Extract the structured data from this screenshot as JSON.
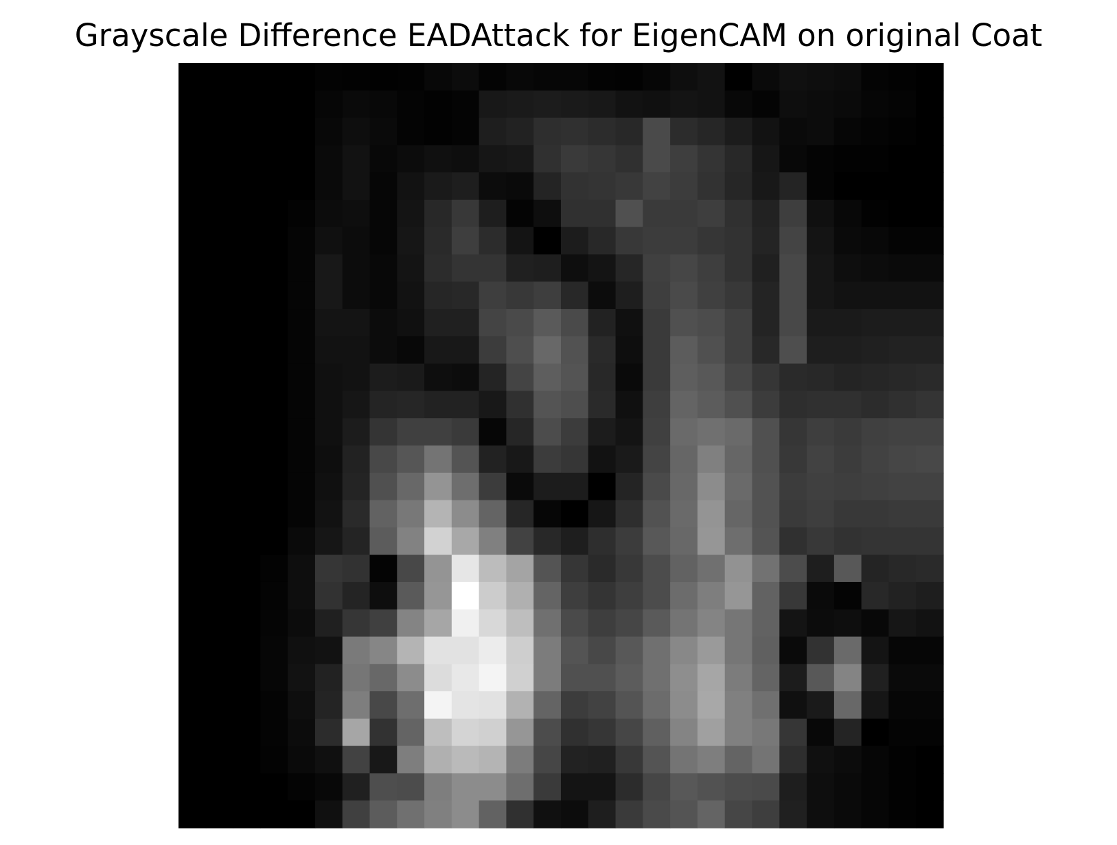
{
  "chart_data": {
    "type": "heatmap",
    "title": "Grayscale Difference EADAttack for EigenCAM on original Coat",
    "xlabel": "",
    "ylabel": "",
    "colormap": "gray",
    "axis_visible": false,
    "grid": false,
    "legend": "none",
    "vmin": 0,
    "vmax": 255,
    "rows": 28,
    "cols": 28,
    "values": [
      [
        0,
        0,
        0,
        0,
        0,
        3,
        2,
        1,
        2,
        8,
        12,
        4,
        8,
        6,
        6,
        3,
        2,
        6,
        14,
        18,
        0,
        10,
        16,
        14,
        12,
        4,
        2,
        0
      ],
      [
        0,
        0,
        0,
        0,
        0,
        6,
        10,
        8,
        4,
        2,
        4,
        24,
        26,
        28,
        26,
        24,
        18,
        16,
        20,
        18,
        8,
        4,
        14,
        12,
        10,
        6,
        4,
        0
      ],
      [
        0,
        0,
        0,
        0,
        0,
        8,
        14,
        10,
        4,
        2,
        4,
        30,
        34,
        46,
        48,
        44,
        40,
        74,
        44,
        38,
        28,
        18,
        10,
        12,
        6,
        4,
        2,
        0
      ],
      [
        0,
        0,
        0,
        0,
        0,
        10,
        18,
        8,
        12,
        16,
        14,
        22,
        24,
        48,
        58,
        54,
        48,
        74,
        62,
        52,
        40,
        22,
        8,
        4,
        2,
        2,
        0,
        0
      ],
      [
        0,
        0,
        0,
        0,
        0,
        10,
        18,
        6,
        18,
        26,
        30,
        12,
        10,
        36,
        50,
        52,
        56,
        66,
        60,
        50,
        38,
        24,
        36,
        4,
        0,
        0,
        0,
        0
      ],
      [
        0,
        0,
        0,
        0,
        3,
        12,
        14,
        6,
        20,
        40,
        56,
        30,
        4,
        14,
        48,
        48,
        80,
        58,
        58,
        62,
        48,
        34,
        62,
        16,
        8,
        2,
        0,
        0
      ],
      [
        0,
        0,
        0,
        0,
        5,
        16,
        12,
        6,
        22,
        42,
        62,
        44,
        20,
        0,
        28,
        40,
        56,
        60,
        60,
        54,
        50,
        36,
        68,
        20,
        10,
        8,
        4,
        4
      ],
      [
        0,
        0,
        0,
        0,
        5,
        24,
        12,
        8,
        20,
        44,
        52,
        52,
        32,
        30,
        14,
        20,
        38,
        64,
        70,
        62,
        50,
        32,
        72,
        22,
        14,
        12,
        10,
        10
      ],
      [
        0,
        0,
        0,
        0,
        5,
        24,
        12,
        8,
        18,
        38,
        40,
        62,
        56,
        62,
        40,
        12,
        30,
        62,
        74,
        64,
        56,
        36,
        72,
        22,
        18,
        18,
        18,
        18
      ],
      [
        0,
        0,
        0,
        0,
        5,
        20,
        20,
        12,
        16,
        32,
        32,
        68,
        74,
        90,
        74,
        34,
        16,
        58,
        80,
        76,
        64,
        36,
        72,
        26,
        26,
        28,
        28,
        28
      ],
      [
        0,
        0,
        0,
        0,
        5,
        18,
        18,
        12,
        8,
        24,
        24,
        60,
        78,
        104,
        82,
        42,
        14,
        58,
        92,
        80,
        64,
        40,
        78,
        30,
        30,
        32,
        34,
        34
      ],
      [
        0,
        0,
        0,
        0,
        5,
        16,
        18,
        28,
        26,
        14,
        12,
        36,
        68,
        94,
        84,
        40,
        10,
        58,
        94,
        88,
        70,
        54,
        42,
        40,
        36,
        38,
        40,
        42
      ],
      [
        0,
        0,
        0,
        0,
        5,
        16,
        22,
        36,
        38,
        34,
        34,
        24,
        48,
        84,
        78,
        42,
        16,
        62,
        100,
        92,
        80,
        60,
        46,
        48,
        48,
        44,
        48,
        52
      ],
      [
        0,
        0,
        0,
        0,
        5,
        16,
        28,
        52,
        64,
        64,
        58,
        6,
        38,
        76,
        60,
        28,
        20,
        64,
        106,
        112,
        106,
        80,
        54,
        62,
        58,
        64,
        66,
        66
      ],
      [
        0,
        0,
        0,
        0,
        5,
        14,
        34,
        72,
        86,
        116,
        84,
        34,
        24,
        60,
        54,
        18,
        26,
        68,
        102,
        128,
        102,
        80,
        56,
        66,
        60,
        66,
        70,
        72
      ],
      [
        0,
        0,
        0,
        0,
        5,
        16,
        36,
        80,
        104,
        148,
        110,
        60,
        10,
        28,
        28,
        0,
        36,
        74,
        104,
        140,
        106,
        82,
        60,
        64,
        62,
        64,
        66,
        66
      ],
      [
        0,
        0,
        0,
        0,
        5,
        18,
        42,
        98,
        120,
        180,
        140,
        100,
        38,
        6,
        0,
        22,
        46,
        82,
        106,
        148,
        102,
        82,
        58,
        62,
        56,
        56,
        58,
        58
      ],
      [
        0,
        0,
        0,
        0,
        10,
        22,
        36,
        92,
        130,
        210,
        168,
        128,
        66,
        40,
        30,
        46,
        60,
        88,
        104,
        150,
        110,
        84,
        48,
        56,
        50,
        52,
        52,
        52
      ],
      [
        0,
        0,
        0,
        3,
        14,
        54,
        50,
        4,
        72,
        148,
        230,
        188,
        164,
        84,
        54,
        42,
        56,
        76,
        98,
        112,
        146,
        114,
        76,
        30,
        88,
        36,
        40,
        42
      ],
      [
        0,
        0,
        0,
        4,
        14,
        50,
        36,
        14,
        90,
        150,
        255,
        204,
        176,
        100,
        62,
        52,
        62,
        76,
        108,
        126,
        150,
        98,
        56,
        10,
        4,
        40,
        34,
        30
      ],
      [
        0,
        0,
        0,
        5,
        12,
        32,
        54,
        64,
        132,
        166,
        240,
        216,
        190,
        112,
        74,
        62,
        70,
        90,
        116,
        132,
        118,
        98,
        20,
        12,
        14,
        8,
        22,
        18
      ],
      [
        0,
        0,
        0,
        6,
        16,
        18,
        122,
        134,
        180,
        226,
        226,
        236,
        206,
        124,
        84,
        72,
        88,
        112,
        136,
        154,
        118,
        96,
        10,
        50,
        106,
        20,
        6,
        6
      ],
      [
        0,
        0,
        0,
        6,
        18,
        34,
        118,
        104,
        140,
        220,
        232,
        244,
        208,
        124,
        80,
        80,
        92,
        112,
        142,
        166,
        124,
        100,
        28,
        88,
        132,
        32,
        10,
        10
      ],
      [
        0,
        0,
        0,
        4,
        14,
        36,
        126,
        72,
        110,
        244,
        228,
        226,
        178,
        100,
        60,
        66,
        84,
        108,
        140,
        168,
        128,
        112,
        16,
        26,
        104,
        22,
        6,
        6
      ],
      [
        0,
        0,
        0,
        4,
        12,
        44,
        166,
        50,
        100,
        190,
        212,
        208,
        150,
        76,
        48,
        54,
        70,
        96,
        132,
        160,
        128,
        120,
        54,
        8,
        36,
        0,
        4,
        4
      ],
      [
        0,
        0,
        0,
        3,
        10,
        16,
        66,
        24,
        126,
        176,
        186,
        180,
        124,
        70,
        34,
        32,
        56,
        84,
        116,
        126,
        100,
        116,
        46,
        16,
        12,
        6,
        2,
        0
      ],
      [
        0,
        0,
        0,
        0,
        4,
        8,
        32,
        78,
        76,
        126,
        140,
        140,
        110,
        58,
        20,
        20,
        44,
        70,
        88,
        82,
        76,
        74,
        30,
        14,
        10,
        6,
        2,
        0
      ],
      [
        0,
        0,
        0,
        0,
        0,
        16,
        64,
        92,
        112,
        128,
        140,
        98,
        48,
        16,
        12,
        30,
        58,
        74,
        84,
        100,
        70,
        62,
        32,
        14,
        10,
        6,
        2,
        0
      ]
    ]
  }
}
